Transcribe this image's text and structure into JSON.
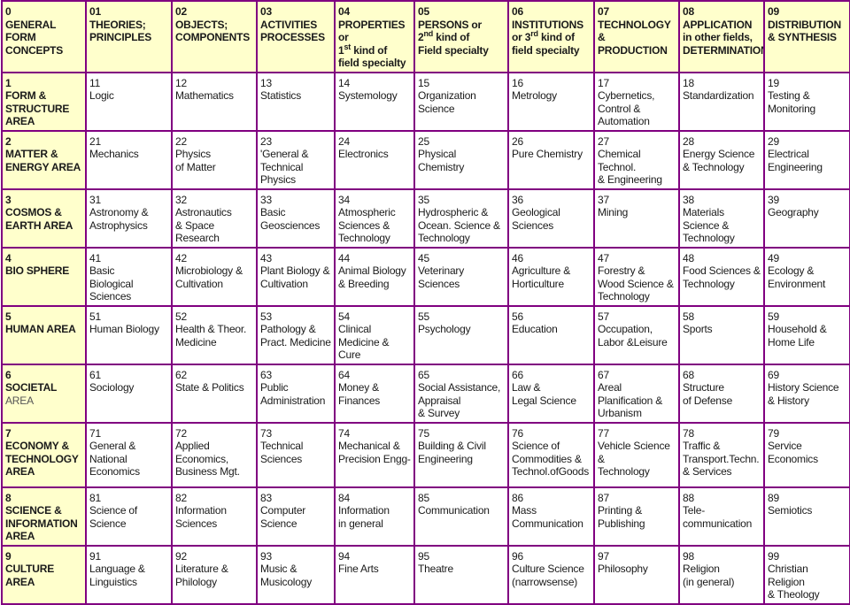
{
  "colors": {
    "border": "#800080",
    "header_bg": "#ffffcc"
  },
  "header": [
    {
      "num": "0",
      "lines": [
        "GENERAL",
        "FORM",
        "CONCEPTS"
      ]
    },
    {
      "num": "01",
      "lines": [
        "THEORIES;",
        "PRINCIPLES"
      ]
    },
    {
      "num": "02",
      "lines": [
        "OBJECTS;",
        "COMPONENTS"
      ]
    },
    {
      "num": "03",
      "lines": [
        "ACTIVITIES",
        "PROCESSES"
      ]
    },
    {
      "num": "04",
      "lines": [
        "PROPERTIES or",
        {
          "pre": "1",
          "sup": "st",
          "post": " kind of"
        },
        "field specialty"
      ]
    },
    {
      "num": "05",
      "lines": [
        "PERSONS or",
        {
          "pre": "2",
          "sup": "nd",
          "post": " kind of"
        },
        "Field specialty"
      ]
    },
    {
      "num": "06",
      "lines": [
        "INSTITUTIONS",
        {
          "pre": "or 3",
          "sup": "rd",
          "post": " kind of"
        },
        "field specialty"
      ]
    },
    {
      "num": "07",
      "lines": [
        "TECHNOLOGY &",
        "PRODUCTION"
      ]
    },
    {
      "num": "08",
      "lines": [
        "APPLICATION",
        "in other fields,",
        "DETERMINATION"
      ]
    },
    {
      "num": "09",
      "lines": [
        "DISTRIBUTION",
        "& SYNTHESIS"
      ]
    }
  ],
  "rows": [
    {
      "area": {
        "num": "1",
        "lines": [
          "FORM &",
          "STRUCTURE",
          "AREA"
        ]
      },
      "cells": [
        {
          "num": "11",
          "text": "Logic"
        },
        {
          "num": "12",
          "text": " Mathematics"
        },
        {
          "num": "13",
          "text": "Statistics"
        },
        {
          "num": "14",
          "text": "Systemology"
        },
        {
          "num": "15",
          "text": "Organization\nScience"
        },
        {
          "num": "16",
          "text": "Metrology"
        },
        {
          "num": "17",
          "text": "Cybernetics,\nControl &\nAutomation"
        },
        {
          "num": "18",
          "text": "Standardization"
        },
        {
          "num": "19",
          "text": "Testing &\nMonitoring"
        }
      ]
    },
    {
      "area": {
        "num": "2",
        "lines": [
          "MATTER &",
          "ENERGY AREA"
        ]
      },
      "cells": [
        {
          "num": "21",
          "text": " Mechanics"
        },
        {
          "num": "22",
          "text": "Physics\nof Matter"
        },
        {
          "num": "23",
          "text": "'General &\n Technical\n Physics"
        },
        {
          "num": "24",
          "text": "Electronics"
        },
        {
          "num": "25",
          "text": "Physical\nChemistry"
        },
        {
          "num": "26",
          "text": "Pure Chemistry"
        },
        {
          "num": "27",
          "text": "Chemical\nTechnol.\n& Engineering"
        },
        {
          "num": "28",
          "text": "Energy Science\n& Technology"
        },
        {
          "num": "29",
          "text": "Electrical\n Engineering"
        }
      ]
    },
    {
      "area": {
        "num": "3",
        "lines": [
          "COSMOS &",
          "EARTH AREA"
        ]
      },
      "cells": [
        {
          "num": "31",
          "text": "Astronomy &\nAstrophysics"
        },
        {
          "num": "32",
          "text": "Astronautics\n& Space\n Research"
        },
        {
          "num": "33",
          "text": "Basic\nGeosciences"
        },
        {
          "num": "34",
          "text": "Atmospheric\nSciences &\nTechnology"
        },
        {
          "num": "35",
          "text": "Hydrospheric &\nOcean. Science &\nTechnology"
        },
        {
          "num": "36",
          "text": "Geological\nSciences"
        },
        {
          "num": "37",
          "text": "Mining"
        },
        {
          "num": "38",
          "text": "Materials\nScience &\nTechnology"
        },
        {
          "num": "39",
          "text": "Geography"
        }
      ]
    },
    {
      "area": {
        "num": "4",
        "lines": [
          "BIO SPHERE"
        ]
      },
      "cells": [
        {
          "num": "41",
          "text": "Basic\nBiological\nSciences"
        },
        {
          "num": "42",
          "text": "Microbiology &\nCultivation"
        },
        {
          "num": "43",
          "text": "Plant Biology &\nCultivation"
        },
        {
          "num": "44",
          "text": "Animal Biology\n& Breeding"
        },
        {
          "num": "45",
          "text": "Veterinary\nSciences"
        },
        {
          "num": "46",
          "text": "Agriculture &\nHorticulture"
        },
        {
          "num": "47",
          "text": "Forestry &\nWood Science &\nTechnology"
        },
        {
          "num": "48",
          "text": "Food Sciences &\nTechnology"
        },
        {
          "num": "49",
          "text": "Ecology &\nEnvironment"
        }
      ]
    },
    {
      "area": {
        "num": "5",
        "lines": [
          "HUMAN AREA"
        ]
      },
      "cells": [
        {
          "num": "51",
          "text": "Human Biology"
        },
        {
          "num": "52",
          "text": "Health & Theor.\nMedicine"
        },
        {
          "num": "53",
          "text": "Pathology &\nPract. Medicine"
        },
        {
          "num": "54",
          "text": "Clinical\nMedicine & Cure"
        },
        {
          "num": "55",
          "text": "Psychology"
        },
        {
          "num": "56",
          "text": "Education"
        },
        {
          "num": "57",
          "text": "Occupation,\nLabor &Leisure"
        },
        {
          "num": "58",
          "text": "Sports"
        },
        {
          "num": "59",
          "text": "Household &\nHome Life"
        }
      ]
    },
    {
      "area": {
        "num": "6",
        "lines": [
          "SOCIETAL"
        ],
        "light_line": "AREA"
      },
      "cells": [
        {
          "num": "61",
          "text": "Sociology"
        },
        {
          "num": "62",
          "text": "State & Politics"
        },
        {
          "num": "63",
          "text": "Public\nAdministration"
        },
        {
          "num": "64",
          "text": "Money &\nFinances"
        },
        {
          "num": "65",
          "text": "Social  Assistance,\nAppraisal\n& Survey"
        },
        {
          "num": "66",
          "text": "Law &\nLegal Science"
        },
        {
          "num": "67",
          "text": "Areal\nPlanification &\nUrbanism"
        },
        {
          "num": "68",
          "text": "Structure\nof Defense"
        },
        {
          "num": "69",
          "text": "History Science\n& History"
        }
      ]
    },
    {
      "area": {
        "num": "7",
        "lines": [
          "ECONOMY &",
          "TECHNOLOGY",
          "AREA"
        ]
      },
      "cells": [
        {
          "num": "71",
          "text": "General &\nNational\nEconomics"
        },
        {
          "num": "72",
          "text": "Applied\nEconomics,\nBusiness Mgt."
        },
        {
          "num": "73",
          "text": "Technical\nSciences"
        },
        {
          "num": "74",
          "text": "Mechanical &\nPrecision Engg-"
        },
        {
          "num": "75",
          "text": "Building & Civil\nEngineering"
        },
        {
          "num": "76",
          "text": "Science of\nCommodities &\nTechnol.ofGoods"
        },
        {
          "num": "77",
          "text": "Vehicle Science &\nTechnology"
        },
        {
          "num": "78",
          "text": "Traffic &\nTransport.Techn.\n&  Services"
        },
        {
          "num": "79",
          "text": "Service\nEconomics"
        }
      ]
    },
    {
      "area": {
        "num": "8",
        "lines": [
          "SCIENCE &",
          "INFORMATION",
          "AREA"
        ]
      },
      "cells": [
        {
          "num": "81",
          "text": "Science of\nScience"
        },
        {
          "num": "82",
          "text": "Information\nSciences"
        },
        {
          "num": "83",
          "text": "Computer\nScience"
        },
        {
          "num": "84",
          "text": "Information\nin general"
        },
        {
          "num": "85",
          "text": "Communication"
        },
        {
          "num": "86",
          "text": "Mass\nCommunication"
        },
        {
          "num": "87",
          "text": "Printing &\nPublishing"
        },
        {
          "num": "88",
          "text": "Tele-\ncommunication"
        },
        {
          "num": "89",
          "text": "Semiotics"
        }
      ]
    },
    {
      "area": {
        "num": "9",
        "lines": [
          "CULTURE",
          "AREA"
        ]
      },
      "cells": [
        {
          "num": "91",
          "text": "Language &\nLinguistics"
        },
        {
          "num": "92",
          "text": "Literature &\nPhilology"
        },
        {
          "num": "93",
          "text": "Music &\nMusicology"
        },
        {
          "num": "94",
          "text": "Fine Arts"
        },
        {
          "num": "95",
          "text": "Theatre"
        },
        {
          "num": "96",
          "text": "Culture Science\n(narrowsense)"
        },
        {
          "num": "97",
          "text": "Philosophy"
        },
        {
          "num": "98",
          "text": "Religion\n(in general)"
        },
        {
          "num": "99",
          "text": "Christian Religion\n& Theology"
        }
      ]
    }
  ]
}
